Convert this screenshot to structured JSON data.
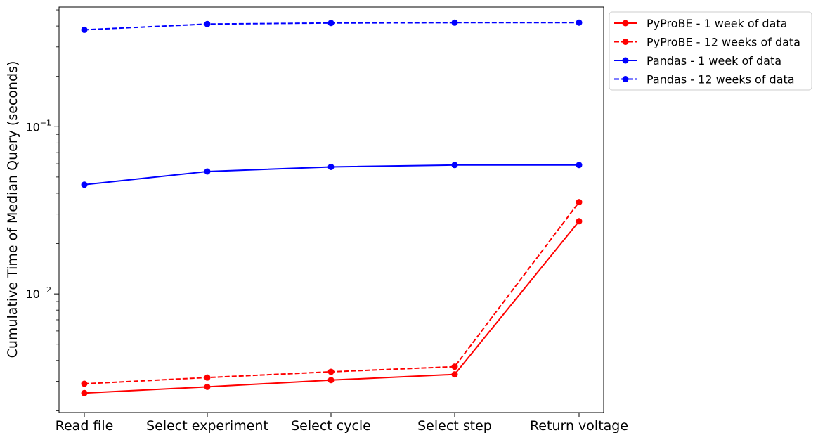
{
  "chart_data": {
    "type": "line",
    "title": "",
    "xlabel": "",
    "ylabel": "Cumulative Time of Median Query (seconds)",
    "yscale": "log",
    "ylim": [
      0.00195,
      0.52
    ],
    "categories": [
      "Read file",
      "Select experiment",
      "Select cycle",
      "Select step",
      "Return voltage"
    ],
    "y_ticks": [
      {
        "value": 0.1,
        "base": "10",
        "exp": "−1"
      },
      {
        "value": 0.01,
        "base": "10",
        "exp": "−2"
      }
    ],
    "grid": false,
    "legend_position": "outside-top-right",
    "series": [
      {
        "name": "PyProBE - 1 week of data",
        "color": "#ff0000",
        "linestyle": "solid",
        "values": [
          0.00255,
          0.00278,
          0.00305,
          0.0033,
          0.0272
        ]
      },
      {
        "name": "PyProBE - 12 weeks of data",
        "color": "#ff0000",
        "linestyle": "dashed",
        "values": [
          0.0029,
          0.00316,
          0.00342,
          0.00367,
          0.0354
        ]
      },
      {
        "name": "Pandas - 1 week of data",
        "color": "#0000ff",
        "linestyle": "solid",
        "values": [
          0.045,
          0.054,
          0.0575,
          0.059,
          0.059
        ]
      },
      {
        "name": "Pandas - 12 weeks of data",
        "color": "#0000ff",
        "linestyle": "dashed",
        "values": [
          0.38,
          0.411,
          0.417,
          0.419,
          0.419
        ]
      }
    ]
  }
}
